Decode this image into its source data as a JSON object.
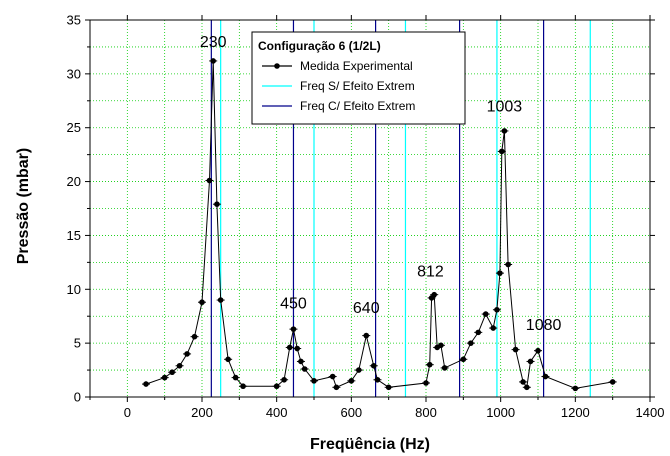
{
  "chart_data": {
    "type": "line",
    "xlabel": "Freqüência (Hz)",
    "ylabel": "Pressão (mbar)",
    "xlim": [
      -100,
      1400
    ],
    "ylim": [
      0,
      35
    ],
    "xticks": [
      0,
      200,
      400,
      600,
      800,
      1000,
      1200,
      1400
    ],
    "yticks": [
      0,
      5,
      10,
      15,
      20,
      25,
      30,
      35
    ],
    "grid": true,
    "legend": {
      "placement": "top-center",
      "title": "Configuração 6 (1/2L)",
      "entries": [
        "Medida Experimental",
        "Freq S/ Efeito Extrem",
        "Freq C/ Efeito Extrem"
      ]
    },
    "colors": {
      "experimental": "#000000",
      "freq_sem": "#00ffff",
      "freq_com": "#00008b",
      "grid": "#00cc00"
    },
    "series": [
      {
        "name": "Medida Experimental",
        "x": [
          50,
          100,
          120,
          140,
          160,
          180,
          200,
          220,
          230,
          240,
          250,
          270,
          290,
          310,
          400,
          420,
          435,
          445,
          455,
          465,
          475,
          500,
          550,
          560,
          600,
          620,
          640,
          660,
          670,
          700,
          800,
          810,
          815,
          822,
          830,
          840,
          850,
          900,
          920,
          940,
          960,
          980,
          990,
          998,
          1003,
          1010,
          1020,
          1040,
          1060,
          1070,
          1080,
          1100,
          1120,
          1200,
          1300
        ],
        "y": [
          1.2,
          1.8,
          2.3,
          2.9,
          4.0,
          5.6,
          8.8,
          20.1,
          31.2,
          17.9,
          9.0,
          3.5,
          1.8,
          1.0,
          1.0,
          1.6,
          4.6,
          6.3,
          4.5,
          3.3,
          2.6,
          1.5,
          1.9,
          0.9,
          1.5,
          2.5,
          5.7,
          2.9,
          1.6,
          0.9,
          1.3,
          3.0,
          9.2,
          9.5,
          4.6,
          4.8,
          2.7,
          3.5,
          5.0,
          6.0,
          7.7,
          6.4,
          8.1,
          11.5,
          22.8,
          24.7,
          12.3,
          4.4,
          1.4,
          0.9,
          3.3,
          4.3,
          1.9,
          0.8,
          1.4
        ]
      },
      {
        "name": "Freq S/ Efeito Extrem",
        "x": [
          250,
          500,
          745,
          990,
          1240
        ]
      },
      {
        "name": "Freq C/ Efeito Extrem",
        "x": [
          225,
          445,
          665,
          890,
          1115
        ]
      }
    ],
    "annotations": [
      {
        "text": "230",
        "x": 230,
        "y": 32.5
      },
      {
        "text": "450",
        "x": 445,
        "y": 8.2
      },
      {
        "text": "640",
        "x": 640,
        "y": 7.8
      },
      {
        "text": "812",
        "x": 812,
        "y": 11.2
      },
      {
        "text": "1003",
        "x": 1010,
        "y": 26.5
      },
      {
        "text": "1080",
        "x": 1115,
        "y": 6.2
      }
    ]
  }
}
